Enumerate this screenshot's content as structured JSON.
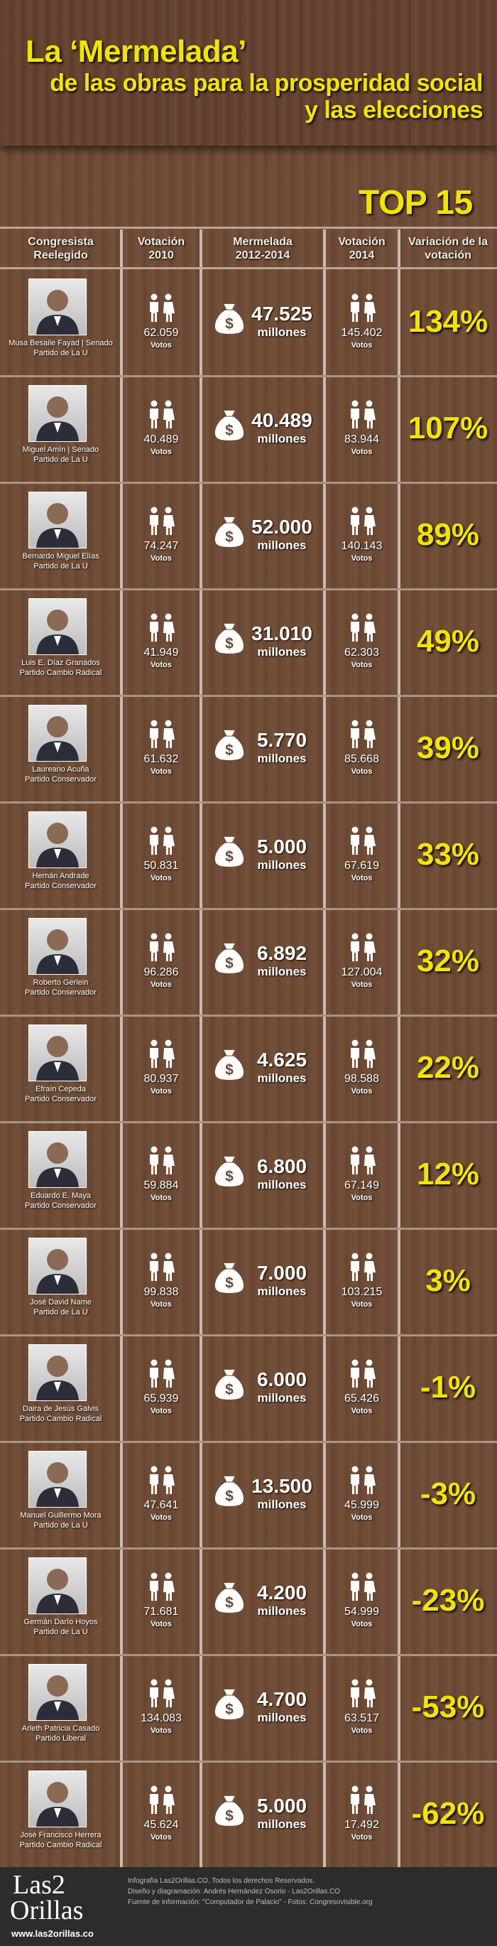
{
  "header": {
    "title": "La ‘Mermelada’",
    "subtitle_lines": [
      "de las obras para la prosperidad social",
      "y las elecciones"
    ],
    "badge": "TOP 15"
  },
  "table": {
    "columns": [
      [
        "Congresista",
        "Reelegido"
      ],
      [
        "Votación",
        "2010"
      ],
      [
        "Mermelada",
        "2012-2014"
      ],
      [
        "Votación",
        "2014"
      ],
      [
        "Variación de la",
        "votación"
      ]
    ],
    "units": {
      "votes": "Votos",
      "millions": "millones"
    },
    "rows": [
      {
        "name_lines": [
          "Musa Besaile Fayad | Senado",
          "Partido de La U"
        ],
        "votes_2010": "62.059",
        "mermelada": "47.525",
        "votes_2014": "145.402",
        "variation": "134%"
      },
      {
        "name_lines": [
          "Miguel Amín | Senado",
          "Partido de La U"
        ],
        "votes_2010": "40.489",
        "mermelada": "40.489",
        "votes_2014": "83.944",
        "variation": "107%"
      },
      {
        "name_lines": [
          "Bernardo Miguel Elías",
          "Partido de La U"
        ],
        "votes_2010": "74.247",
        "mermelada": "52.000",
        "votes_2014": "140.143",
        "variation": "89%"
      },
      {
        "name_lines": [
          "Luis E. Díaz Granados",
          "Partido Cambio Radical"
        ],
        "votes_2010": "41.949",
        "mermelada": "31.010",
        "votes_2014": "62.303",
        "variation": "49%"
      },
      {
        "name_lines": [
          "Laureano Acuña",
          "Partido Conservador"
        ],
        "votes_2010": "61.632",
        "mermelada": "5.770",
        "votes_2014": "85.668",
        "variation": "39%"
      },
      {
        "name_lines": [
          "Hernán Andrade",
          "Partido Conservador"
        ],
        "votes_2010": "50.831",
        "mermelada": "5.000",
        "votes_2014": "67.619",
        "variation": "33%"
      },
      {
        "name_lines": [
          "Roberto Gerlein",
          "Partido Conservador"
        ],
        "votes_2010": "96.286",
        "mermelada": "6.892",
        "votes_2014": "127.004",
        "variation": "32%"
      },
      {
        "name_lines": [
          "Efraín Cepeda",
          "Partido Conservador"
        ],
        "votes_2010": "80.937",
        "mermelada": "4.625",
        "votes_2014": "98.588",
        "variation": "22%"
      },
      {
        "name_lines": [
          "Eduardo E. Maya",
          "Partido Conservador"
        ],
        "votes_2010": "59.884",
        "mermelada": "6.800",
        "votes_2014": "67.149",
        "variation": "12%"
      },
      {
        "name_lines": [
          "José David Name",
          "Partido de La U"
        ],
        "votes_2010": "99.838",
        "mermelada": "7.000",
        "votes_2014": "103.215",
        "variation": "3%"
      },
      {
        "name_lines": [
          "Daira de Jesús Galvis",
          "Partido Cambio Radical"
        ],
        "votes_2010": "65.939",
        "mermelada": "6.000",
        "votes_2014": "65.426",
        "variation": "-1%"
      },
      {
        "name_lines": [
          "Manuel Guillermo Mora",
          "Partido de La U"
        ],
        "votes_2010": "47.641",
        "mermelada": "13.500",
        "votes_2014": "45.999",
        "variation": "-3%"
      },
      {
        "name_lines": [
          "Germán Darío Hoyos",
          "Partido de La U"
        ],
        "votes_2010": "71.681",
        "mermelada": "4.200",
        "votes_2014": "54.999",
        "variation": "-23%"
      },
      {
        "name_lines": [
          "Arleth Patricia Casado",
          "Partido Liberal"
        ],
        "votes_2010": "134.083",
        "mermelada": "4.700",
        "votes_2014": "63.517",
        "variation": "-53%"
      },
      {
        "name_lines": [
          "José Francisco Herrera",
          "Partido Cambio Radical"
        ],
        "votes_2010": "45.624",
        "mermelada": "5.000",
        "votes_2014": "17.492",
        "variation": "-62%"
      }
    ]
  },
  "footer": {
    "logo_lines": [
      "Las2",
      "Orillas"
    ],
    "url": "www.las2orillas.co",
    "credits": [
      "Infografía Las2Orillas.CO. Todos los derechos Reservados.",
      "Diseño y diagramación: Andrés Hernández Osorio - Las2Orillas.CO",
      "Fuente de información: \"Computador de Palacio\" - Fotos: Congresovisible.org"
    ]
  }
}
